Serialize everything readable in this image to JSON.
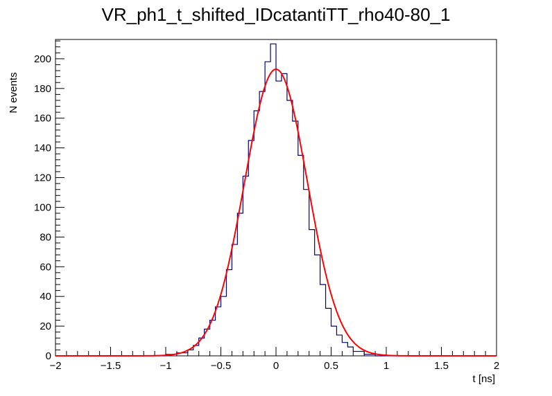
{
  "chart_data": {
    "type": "line",
    "title": "VR_ph1_t_shifted_IDcatantiTT_rho40-80_1",
    "xlabel": "t [ns]",
    "ylabel": "N events",
    "xlim": [
      -2,
      2
    ],
    "ylim": [
      0,
      213
    ],
    "x_ticks": [
      -2,
      -1.5,
      -1,
      -0.5,
      0,
      0.5,
      1,
      1.5,
      2
    ],
    "x_tick_labels": [
      "−2",
      "−1.5",
      "−1",
      "−0.5",
      "0",
      "0.5",
      "1",
      "1.5",
      "2"
    ],
    "y_ticks": [
      0,
      20,
      40,
      60,
      80,
      100,
      120,
      140,
      160,
      180,
      200
    ],
    "y_tick_labels": [
      "0",
      "20",
      "40",
      "60",
      "80",
      "100",
      "120",
      "140",
      "160",
      "180",
      "200"
    ],
    "colors": {
      "histogram": "#000080",
      "fit": "#ff0000"
    },
    "series": [
      {
        "name": "histogram",
        "kind": "step",
        "x": [
          -1.0,
          -0.9,
          -0.8,
          -0.75,
          -0.7,
          -0.65,
          -0.6,
          -0.55,
          -0.5,
          -0.45,
          -0.4,
          -0.35,
          -0.3,
          -0.25,
          -0.2,
          -0.15,
          -0.1,
          -0.05,
          0.0,
          0.05,
          0.1,
          0.15,
          0.2,
          0.25,
          0.3,
          0.35,
          0.4,
          0.45,
          0.5,
          0.55,
          0.6,
          0.65,
          0.7,
          0.8,
          0.9,
          1.0
        ],
        "values": [
          1,
          2,
          4,
          7,
          12,
          18,
          24,
          33,
          40,
          58,
          75,
          96,
          121,
          145,
          165,
          178,
          198,
          210,
          185,
          190,
          172,
          158,
          135,
          112,
          85,
          68,
          48,
          32,
          20,
          14,
          9,
          6,
          3,
          1,
          0,
          0
        ]
      },
      {
        "name": "gaussian fit",
        "kind": "function",
        "function": "gaussian",
        "amplitude": 193,
        "mean": 0.0,
        "sigma": 0.285
      }
    ]
  }
}
